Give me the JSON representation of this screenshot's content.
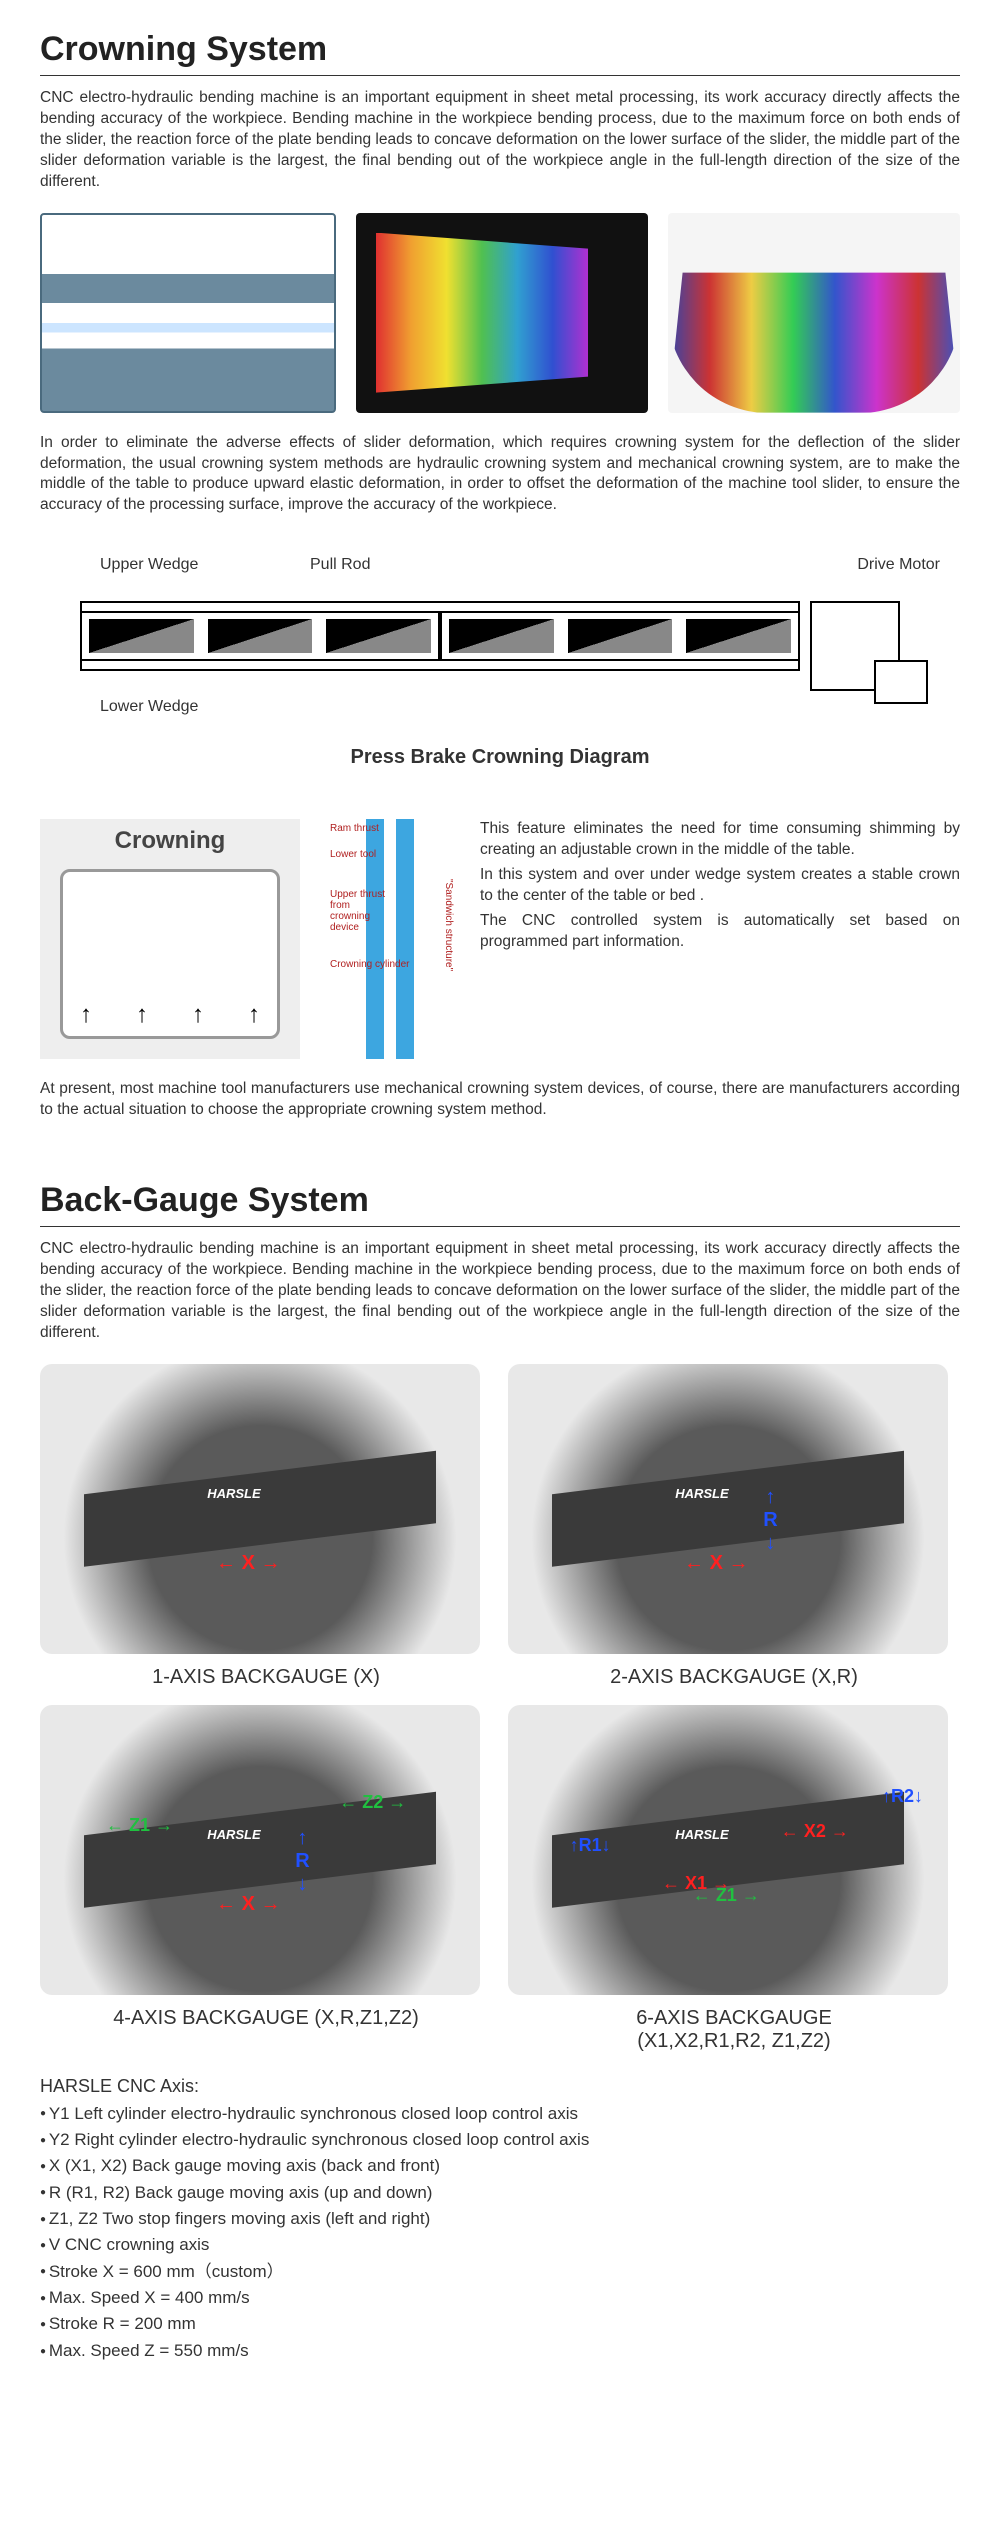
{
  "crowning": {
    "title": "Crowning System",
    "para1": "CNC electro-hydraulic bending machine is an important equipment in sheet metal processing, its work accuracy directly affects the bending accuracy of the workpiece. Bending machine in the workpiece bending process, due to the maximum force on both ends of the slider, the reaction force of the plate bending leads to concave deformation on the lower surface of the slider, the middle part of the slider deformation variable is the largest, the final bending out of the workpiece angle in the full-length direction of the size of the different.",
    "para2": "In order to eliminate the adverse effects of slider deformation, which requires crowning system for the deflection of the slider deformation, the usual crowning system methods are hydraulic crowning system and mechanical crowning system, are to make the middle of the table to produce upward elastic deformation, in order to offset the deformation of the machine tool slider, to ensure the accuracy of the processing surface, improve the accuracy of the workpiece.",
    "diagram": {
      "upper_wedge": "Upper Wedge",
      "pull_rod": "Pull Rod",
      "drive_motor": "Drive Motor",
      "lower_wedge": "Lower Wedge",
      "title": "Press Brake Crowning Diagram"
    },
    "crowning_block": {
      "title": "Crowning",
      "ram_thrust": "Ram thrust",
      "lower_tool": "Lower tool",
      "upper_thrust": "Upper thrust from crowning device",
      "crowning_cylinder": "Crowning cylinder",
      "sandwich": "\"Sandwich structure\"",
      "text1": "This feature eliminates the need for time consuming shimming by creating an adjustable crown in the middle of the table.",
      "text2": "In this system and over under wedge system creates a stable crown to the center of the table or bed .",
      "text3": "The CNC controlled system is automatically set based on programmed part information."
    },
    "para3": "At present, most machine tool manufacturers use mechanical crowning system devices, of course, there are manufacturers according to the actual situation to choose the appropriate crowning system method."
  },
  "backgauge": {
    "title": "Back-Gauge System",
    "para1": "CNC electro-hydraulic bending machine is an important equipment in sheet metal processing, its work accuracy directly affects the bending accuracy of the workpiece. Bending machine in the workpiece bending process, due to the maximum force on both ends of the slider, the reaction force of the plate bending leads to concave deformation on the lower surface of the slider, the middle part of the slider deformation variable is the largest, the final bending out of the workpiece angle in the full-length direction of the size of the different.",
    "brand": "HARSLE",
    "items": [
      {
        "label": "1-AXIS BACKGAUGE (X)"
      },
      {
        "label": "2-AXIS BACKGAUGE (X,R)"
      },
      {
        "label": "4-AXIS BACKGAUGE (X,R,Z1,Z2)"
      },
      {
        "label": "6-AXIS BACKGAUGE",
        "label2": "(X1,X2,R1,R2, Z1,Z2)"
      }
    ],
    "axis_title": "HARSLE CNC Axis:",
    "axis_list": [
      "Y1 Left cylinder electro-hydraulic synchronous closed loop control axis",
      "Y2 Right cylinder electro-hydraulic synchronous closed loop control axis",
      "X (X1, X2) Back gauge moving axis (back and front)",
      "R (R1, R2) Back gauge moving axis (up and down)",
      "Z1, Z2 Two stop fingers moving axis (left and right)",
      "V CNC crowning axis",
      "Stroke X = 600 mm（custom）",
      "Max. Speed X = 400 mm/s",
      "Stroke R = 200 mm",
      "Max. Speed Z = 550 mm/s"
    ]
  },
  "axes": {
    "x": "X",
    "r": "R",
    "z1": "Z1",
    "z2": "Z2",
    "x1": "X1",
    "x2": "X2",
    "r1": "R1",
    "r2": "R2"
  }
}
